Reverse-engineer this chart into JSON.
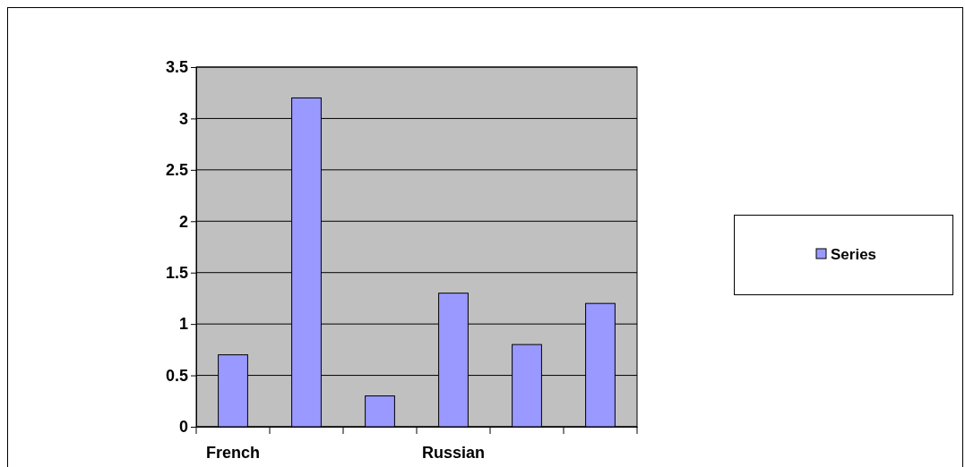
{
  "chart_data": {
    "type": "bar",
    "categories": [
      "French",
      null,
      null,
      "Russian",
      null,
      null
    ],
    "series": [
      {
        "name": "Series",
        "color": "#9999ff",
        "values": [
          0.7,
          3.2,
          0.3,
          1.3,
          0.8,
          1.2
        ]
      }
    ],
    "ylim": [
      0,
      3.5
    ],
    "yticks": [
      0,
      0.5,
      1,
      1.5,
      2,
      2.5,
      3,
      3.5
    ],
    "grid": "y",
    "legend": "right"
  }
}
